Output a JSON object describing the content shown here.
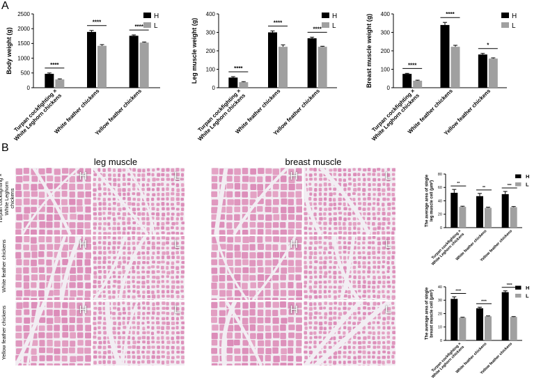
{
  "figure": {
    "panel_a": "A",
    "panel_b": "B",
    "hist_titles": [
      "leg muscle",
      "breast muscle"
    ],
    "row_labels": [
      "Turpan cockfighting × White Leghorn chickens",
      "White feather chickens",
      "Yellow feather chickens"
    ],
    "tile_letters": [
      "H",
      "L",
      "H",
      "L"
    ],
    "colors": {
      "H": "#000000",
      "L": "#a0a0a0",
      "tissue": "#e2a0c0",
      "stroma": "#f2eef3"
    }
  },
  "chart_data": [
    {
      "type": "bar",
      "categories": [
        "Turpan cockfighting ×\nWhite Leghorn chickens",
        "White feather chickens",
        "Yellow feather chickens"
      ],
      "series": [
        {
          "name": "H",
          "values": [
            470,
            1890,
            1760
          ]
        },
        {
          "name": "L",
          "values": [
            280,
            1420,
            1530
          ]
        }
      ],
      "errors": [
        [
          30,
          50,
          30
        ],
        [
          20,
          40,
          20
        ]
      ],
      "significance": [
        "****",
        "****",
        "****"
      ],
      "xlabel": "",
      "ylabel": "Body weight (g)",
      "ylim": [
        0,
        2500
      ],
      "yticks": [
        0,
        500,
        1000,
        1500,
        2000,
        2500
      ],
      "legend": "top-right"
    },
    {
      "type": "bar",
      "categories": [
        "Turpan cockfighting ×\nWhite Leghorn chickens",
        "White feather chickens",
        "Yellow feather chickens"
      ],
      "series": [
        {
          "name": "H",
          "values": [
            55,
            300,
            268
          ]
        },
        {
          "name": "L",
          "values": [
            30,
            222,
            222
          ]
        }
      ],
      "errors": [
        [
          5,
          8,
          6
        ],
        [
          3,
          10,
          3
        ]
      ],
      "significance": [
        "****",
        "****",
        "****"
      ],
      "xlabel": "",
      "ylabel": "Leg muscle weight (g)",
      "ylim": [
        0,
        400
      ],
      "yticks": [
        0,
        100,
        200,
        300,
        400
      ],
      "legend": "top-right"
    },
    {
      "type": "bar",
      "categories": [
        "Turpan cockfighting ×\nWhite Leghorn chickens",
        "White feather chickens",
        "Yellow feather chickens"
      ],
      "series": [
        {
          "name": "H",
          "values": [
            75,
            340,
            180
          ]
        },
        {
          "name": "L",
          "values": [
            38,
            222,
            158
          ]
        }
      ],
      "errors": [
        [
          3,
          14,
          6
        ],
        [
          3,
          8,
          4
        ]
      ],
      "significance": [
        "****",
        "****",
        "*"
      ],
      "xlabel": "",
      "ylabel": "Breast muscle weight (g)",
      "ylim": [
        0,
        400
      ],
      "yticks": [
        0,
        100,
        200,
        300,
        400
      ],
      "legend": "top-right"
    },
    {
      "type": "bar",
      "categories": [
        "Turpan cockfighting ×\nWhite Leghorn chickens",
        "White feather chickens",
        "Yellow feather chickens"
      ],
      "series": [
        {
          "name": "H",
          "values": [
            52,
            47,
            50
          ]
        },
        {
          "name": "L",
          "values": [
            31,
            29.5,
            30.5
          ]
        }
      ],
      "errors": [
        [
          5,
          4,
          4
        ],
        [
          1,
          1,
          1
        ]
      ],
      "significance": [
        "**",
        "**",
        "***"
      ],
      "xlabel": "",
      "ylabel": "The average area of single\nleg muscle cell (μm²)",
      "ylim": [
        0,
        80
      ],
      "yticks": [
        0,
        20,
        40,
        60,
        80
      ],
      "legend": "top-right"
    },
    {
      "type": "bar",
      "categories": [
        "Turpan cockfighting ×\nWhite Leghorn chickens",
        "White feather chickens",
        "Yellow feather chickens"
      ],
      "series": [
        {
          "name": "H",
          "values": [
            31,
            24,
            36
          ]
        },
        {
          "name": "L",
          "values": [
            17,
            18,
            17.5
          ]
        }
      ],
      "errors": [
        [
          1.5,
          0.8,
          1
        ],
        [
          0.3,
          0.3,
          0.3
        ]
      ],
      "significance": [
        "****",
        "****",
        "****"
      ],
      "xlabel": "",
      "ylabel": "The average area of single\nbreast muscle cell (μm²)",
      "ylim": [
        0,
        40
      ],
      "yticks": [
        0,
        10,
        20,
        30,
        40
      ],
      "legend": "top-right"
    }
  ]
}
